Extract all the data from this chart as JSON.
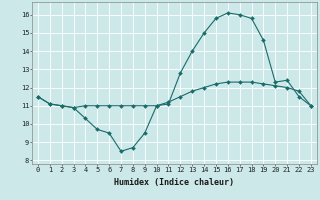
{
  "xlabel": "Humidex (Indice chaleur)",
  "background_color": "#cce8e8",
  "grid_color": "#ffffff",
  "line_color": "#1a6b6b",
  "x_line1": [
    0,
    1,
    2,
    3,
    4,
    5,
    6,
    7,
    8,
    9,
    10,
    11,
    12,
    13,
    14,
    15,
    16,
    17,
    18,
    19,
    20,
    21,
    22,
    23
  ],
  "y_line1": [
    11.5,
    11.1,
    11.0,
    10.9,
    10.3,
    9.7,
    9.5,
    8.5,
    8.7,
    9.5,
    11.0,
    11.1,
    12.8,
    14.0,
    15.0,
    15.8,
    16.1,
    16.0,
    15.8,
    14.6,
    12.3,
    12.4,
    11.5,
    11.0
  ],
  "x_line2": [
    0,
    1,
    2,
    3,
    4,
    5,
    6,
    7,
    8,
    9,
    10,
    11,
    12,
    13,
    14,
    15,
    16,
    17,
    18,
    19,
    20,
    21,
    22,
    23
  ],
  "y_line2": [
    11.5,
    11.1,
    11.0,
    10.9,
    11.0,
    11.0,
    11.0,
    11.0,
    11.0,
    11.0,
    11.0,
    11.2,
    11.5,
    11.8,
    12.0,
    12.2,
    12.3,
    12.3,
    12.3,
    12.2,
    12.1,
    12.0,
    11.8,
    11.0
  ],
  "xlim": [
    -0.5,
    23.5
  ],
  "ylim": [
    7.8,
    16.7
  ],
  "yticks": [
    8,
    9,
    10,
    11,
    12,
    13,
    14,
    15,
    16
  ],
  "xticks": [
    0,
    1,
    2,
    3,
    4,
    5,
    6,
    7,
    8,
    9,
    10,
    11,
    12,
    13,
    14,
    15,
    16,
    17,
    18,
    19,
    20,
    21,
    22,
    23
  ],
  "tick_fontsize": 5.0,
  "xlabel_fontsize": 6.0
}
